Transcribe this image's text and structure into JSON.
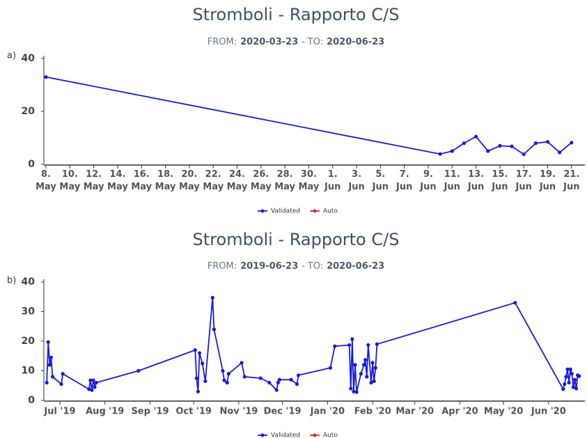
{
  "chart_data": [
    {
      "type": "line",
      "panel": "a)",
      "title": "Stromboli - Rapporto C/S",
      "subtitle": {
        "from_label": "FROM:",
        "from": "2020-03-23",
        "sep": "-",
        "to_label": "TO:",
        "to": "2020-06-23"
      },
      "xlim": [
        "2020-05-08",
        "2020-06-22"
      ],
      "xticks": [
        {
          "value": "2020-05-08",
          "label": "8. May"
        },
        {
          "value": "2020-05-10",
          "label": "10. May"
        },
        {
          "value": "2020-05-12",
          "label": "12. May"
        },
        {
          "value": "2020-05-14",
          "label": "14. May"
        },
        {
          "value": "2020-05-16",
          "label": "16. May"
        },
        {
          "value": "2020-05-18",
          "label": "18. May"
        },
        {
          "value": "2020-05-20",
          "label": "20. May"
        },
        {
          "value": "2020-05-22",
          "label": "22. May"
        },
        {
          "value": "2020-05-24",
          "label": "24. May"
        },
        {
          "value": "2020-05-26",
          "label": "26. May"
        },
        {
          "value": "2020-05-28",
          "label": "28. May"
        },
        {
          "value": "2020-05-30",
          "label": "30. May"
        },
        {
          "value": "2020-06-01",
          "label": "1. Jun"
        },
        {
          "value": "2020-06-03",
          "label": "3. Jun"
        },
        {
          "value": "2020-06-05",
          "label": "5. Jun"
        },
        {
          "value": "2020-06-07",
          "label": "7. Jun"
        },
        {
          "value": "2020-06-09",
          "label": "9. Jun"
        },
        {
          "value": "2020-06-11",
          "label": "11. Jun"
        },
        {
          "value": "2020-06-13",
          "label": "13. Jun"
        },
        {
          "value": "2020-06-15",
          "label": "15. Jun"
        },
        {
          "value": "2020-06-17",
          "label": "17. Jun"
        },
        {
          "value": "2020-06-19",
          "label": "19. Jun"
        },
        {
          "value": "2020-06-21",
          "label": "21. Jun"
        }
      ],
      "ylim": [
        0,
        40
      ],
      "yticks": [
        0,
        20,
        40
      ],
      "series": [
        {
          "name": "Validated",
          "color": "#1a1adb",
          "x": [
            "2020-05-08",
            "2020-06-10",
            "2020-06-11",
            "2020-06-12",
            "2020-06-13",
            "2020-06-14",
            "2020-06-15",
            "2020-06-16",
            "2020-06-17",
            "2020-06-18",
            "2020-06-19",
            "2020-06-20",
            "2020-06-21"
          ],
          "values": [
            33,
            3.9,
            5,
            8,
            10.5,
            5,
            7,
            6.8,
            3.8,
            8,
            8.5,
            4.5,
            8.2
          ]
        },
        {
          "name": "Auto",
          "color": "#d42a2a",
          "x": [],
          "values": []
        }
      ]
    },
    {
      "type": "line",
      "panel": "b)",
      "title": "Stromboli - Rapporto C/S",
      "subtitle": {
        "from_label": "FROM:",
        "from": "2019-06-23",
        "sep": "-",
        "to_label": "TO:",
        "to": "2020-06-23"
      },
      "xlim": [
        "2019-06-20",
        "2020-06-25"
      ],
      "xticks": [
        {
          "value": "2019-07-01",
          "label": "Jul '19"
        },
        {
          "value": "2019-08-01",
          "label": "Aug '19"
        },
        {
          "value": "2019-09-01",
          "label": "Sep '19"
        },
        {
          "value": "2019-10-01",
          "label": "Oct '19"
        },
        {
          "value": "2019-11-01",
          "label": "Nov '19"
        },
        {
          "value": "2019-12-01",
          "label": "Dec '19"
        },
        {
          "value": "2020-01-01",
          "label": "Jan '20"
        },
        {
          "value": "2020-02-01",
          "label": "Feb '20"
        },
        {
          "value": "2020-03-01",
          "label": "Mar '20"
        },
        {
          "value": "2020-04-01",
          "label": "Apr '20"
        },
        {
          "value": "2020-05-01",
          "label": "May '20"
        },
        {
          "value": "2020-06-01",
          "label": "Jun '20"
        }
      ],
      "ylim": [
        0,
        40
      ],
      "yticks": [
        0,
        10,
        20,
        30,
        40
      ],
      "series": [
        {
          "name": "Validated",
          "color": "#1a1adb",
          "x": [
            "2019-06-22",
            "2019-06-23",
            "2019-06-24",
            "2019-06-25",
            "2019-06-26",
            "2019-07-02",
            "2019-07-03",
            "2019-07-21",
            "2019-07-22",
            "2019-07-23",
            "2019-07-24",
            "2019-07-25",
            "2019-07-26",
            "2019-08-24",
            "2019-10-02",
            "2019-10-03",
            "2019-10-04",
            "2019-10-05",
            "2019-10-07",
            "2019-10-09",
            "2019-10-14",
            "2019-10-15",
            "2019-10-21",
            "2019-10-22",
            "2019-10-24",
            "2019-10-25",
            "2019-11-03",
            "2019-11-05",
            "2019-11-16",
            "2019-11-22",
            "2019-11-27",
            "2019-11-28",
            "2019-11-29",
            "2019-12-07",
            "2019-12-11",
            "2019-12-12",
            "2020-01-03",
            "2020-01-06",
            "2020-01-16",
            "2020-01-17",
            "2020-01-18",
            "2020-01-19",
            "2020-01-20",
            "2020-01-21",
            "2020-01-24",
            "2020-01-26",
            "2020-01-27",
            "2020-01-28",
            "2020-01-29",
            "2020-01-31",
            "2020-02-01",
            "2020-02-02",
            "2020-02-03",
            "2020-02-04",
            "2020-05-09",
            "2020-06-11",
            "2020-06-12",
            "2020-06-13",
            "2020-06-14",
            "2020-06-15",
            "2020-06-16",
            "2020-06-17",
            "2020-06-18",
            "2020-06-19",
            "2020-06-20",
            "2020-06-21",
            "2020-06-22"
          ],
          "values": [
            6,
            19.7,
            12,
            14.5,
            8,
            5.5,
            9,
            3.8,
            6.8,
            3.5,
            6.8,
            4.5,
            6,
            10,
            17,
            7.5,
            3,
            16,
            12.5,
            6.5,
            34.7,
            24,
            10,
            6.8,
            6,
            9,
            12.7,
            8,
            7.5,
            6,
            3.5,
            6,
            7,
            7,
            5.5,
            8.5,
            11,
            18.3,
            18.7,
            4,
            20.7,
            3,
            12,
            2.8,
            9,
            12,
            13.7,
            8,
            18.7,
            6,
            12.7,
            6.5,
            11,
            19,
            33,
            3.8,
            5.5,
            8,
            10.5,
            6,
            10.5,
            9,
            4.5,
            7,
            4,
            8.5,
            8.2
          ]
        },
        {
          "name": "Auto",
          "color": "#d42a2a",
          "x": [],
          "values": []
        }
      ]
    }
  ]
}
